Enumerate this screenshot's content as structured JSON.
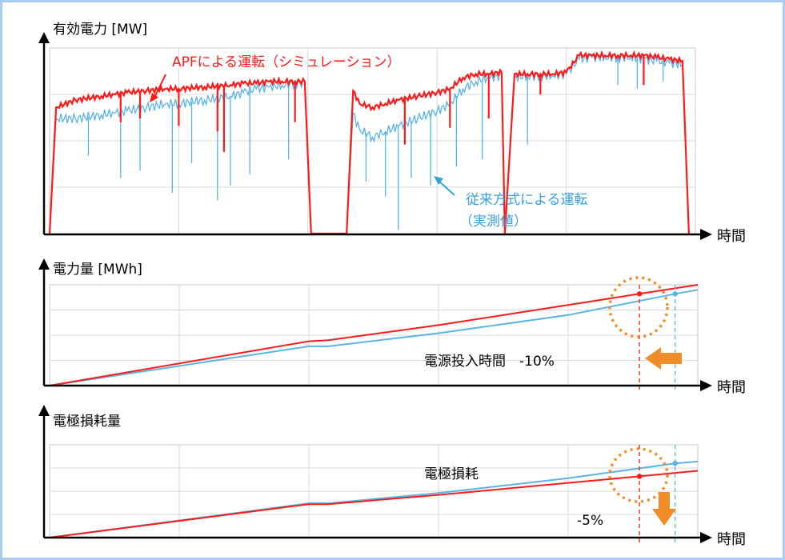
{
  "colors": {
    "apf": "#ff1a1a",
    "conventional": "#5ab4e6",
    "marker": "#f28c28",
    "axis": "#000000",
    "grid": "#d9d9d9",
    "panel_border": "#c8c8c8",
    "frame": "#a9cdf2"
  },
  "panels": {
    "power": {
      "ylabel": "有効電力 [MW]",
      "xlabel": "時間"
    },
    "energy": {
      "ylabel": "電力量 [MWh]",
      "xlabel": "時間"
    },
    "wear": {
      "ylabel": "電極損耗量",
      "xlabel": "時間"
    }
  },
  "annotations": {
    "apf": "APFによる運転（シミュレーション）",
    "conventional_line1": "従来方式による運転",
    "conventional_line2": "（実測値）",
    "energy_note": "電源投入時間　-10%",
    "wear_note": "電極損耗",
    "wear_pct": "-5%"
  },
  "chart_data": [
    {
      "type": "line",
      "id": "power",
      "ylabel": "有効電力 [MW]",
      "xlabel": "時間",
      "grid": true,
      "x_range": [
        0,
        100
      ],
      "y_range": [
        0,
        100
      ],
      "series": [
        {
          "name": "APFによる運転（シミュレーション）",
          "color": "#ff1a1a",
          "x": [
            0,
            1,
            4,
            8,
            10,
            12,
            15,
            18,
            20,
            24,
            28,
            30,
            32,
            34,
            36,
            38,
            39.5,
            40.5,
            46,
            47,
            48,
            50,
            52,
            54,
            57,
            60,
            62,
            64,
            66,
            68,
            70,
            70.5,
            72,
            74,
            76,
            78,
            80,
            82,
            84,
            86,
            88,
            90,
            92,
            94,
            96,
            98,
            99
          ],
          "y": [
            0,
            68,
            72,
            74,
            75,
            76,
            77,
            78,
            78,
            79,
            80,
            81,
            81,
            82,
            82,
            82,
            82,
            0,
            0,
            77,
            70,
            68,
            70,
            72,
            74,
            76,
            78,
            84,
            86,
            86,
            87,
            0,
            86,
            86,
            86,
            86,
            87,
            96,
            96,
            96,
            96,
            96,
            96,
            95,
            94,
            93,
            0
          ],
          "spikes_x": [
            11,
            14,
            20,
            26,
            27,
            38,
            55,
            62,
            68,
            76,
            92
          ],
          "spikes_y": [
            60,
            62,
            58,
            55,
            44,
            60,
            48,
            57,
            62,
            75,
            80
          ]
        },
        {
          "name": "従来方式による運転（実測値）",
          "color": "#5ab4e6",
          "x": [
            0,
            1,
            4,
            8,
            10,
            12,
            15,
            18,
            20,
            24,
            28,
            30,
            32,
            34,
            36,
            38,
            39.5,
            40.5,
            46,
            47,
            48,
            50,
            52,
            54,
            57,
            60,
            62,
            64,
            66,
            68,
            70,
            70.5,
            72,
            74,
            76,
            78,
            80,
            82,
            84,
            86,
            88,
            90,
            92,
            94,
            96,
            98,
            99
          ],
          "y": [
            0,
            62,
            62,
            64,
            65,
            66,
            68,
            70,
            70,
            72,
            74,
            76,
            78,
            79,
            80,
            81,
            81,
            0,
            0,
            65,
            56,
            52,
            55,
            58,
            62,
            66,
            70,
            78,
            82,
            84,
            85,
            0,
            84,
            85,
            85,
            85,
            86,
            94,
            95,
            95,
            95,
            95,
            94,
            93,
            92,
            91,
            0
          ],
          "spikes_x": [
            6,
            11,
            14,
            19,
            22,
            26,
            28,
            31,
            37,
            49,
            52,
            54,
            56,
            59,
            63,
            67,
            74,
            88,
            91,
            95
          ],
          "spikes_y": [
            42,
            30,
            34,
            22,
            38,
            18,
            26,
            32,
            40,
            28,
            20,
            2,
            30,
            26,
            36,
            40,
            48,
            80,
            78,
            82
          ]
        }
      ]
    },
    {
      "type": "line",
      "id": "energy",
      "ylabel": "電力量 [MWh]",
      "xlabel": "時間",
      "grid": true,
      "x_range": [
        0,
        100
      ],
      "y_range": [
        0,
        100
      ],
      "series": [
        {
          "name": "APF",
          "color": "#ff1a1a",
          "x": [
            0,
            40,
            43,
            60,
            80,
            91,
            100
          ],
          "y": [
            0,
            44,
            45,
            60,
            80,
            91,
            100
          ]
        },
        {
          "name": "従来方式",
          "color": "#5ab4e6",
          "x": [
            0,
            40,
            43,
            60,
            80,
            96.5,
            100
          ],
          "y": [
            0,
            39,
            39,
            52,
            70,
            91,
            95
          ]
        }
      ],
      "markers": [
        {
          "x": 91,
          "y": 91,
          "color": "#ff1a1a"
        },
        {
          "x": 96.5,
          "y": 91,
          "color": "#5ab4e6"
        }
      ]
    },
    {
      "type": "line",
      "id": "wear",
      "ylabel": "電極損耗量",
      "xlabel": "時間",
      "grid": true,
      "x_range": [
        0,
        100
      ],
      "y_range": [
        0,
        100
      ],
      "series": [
        {
          "name": "APF",
          "color": "#ff1a1a",
          "x": [
            0,
            40,
            43,
            60,
            80,
            91,
            100
          ],
          "y": [
            0,
            36,
            36,
            46,
            59,
            66,
            72
          ]
        },
        {
          "name": "従来方式",
          "color": "#5ab4e6",
          "x": [
            0,
            40,
            43,
            60,
            80,
            96.5,
            100
          ],
          "y": [
            0,
            37,
            37,
            48,
            64,
            80,
            82
          ]
        }
      ],
      "markers": [
        {
          "x": 91,
          "y": 66,
          "color": "#ff1a1a"
        },
        {
          "x": 96.5,
          "y": 80,
          "color": "#5ab4e6"
        }
      ]
    }
  ]
}
